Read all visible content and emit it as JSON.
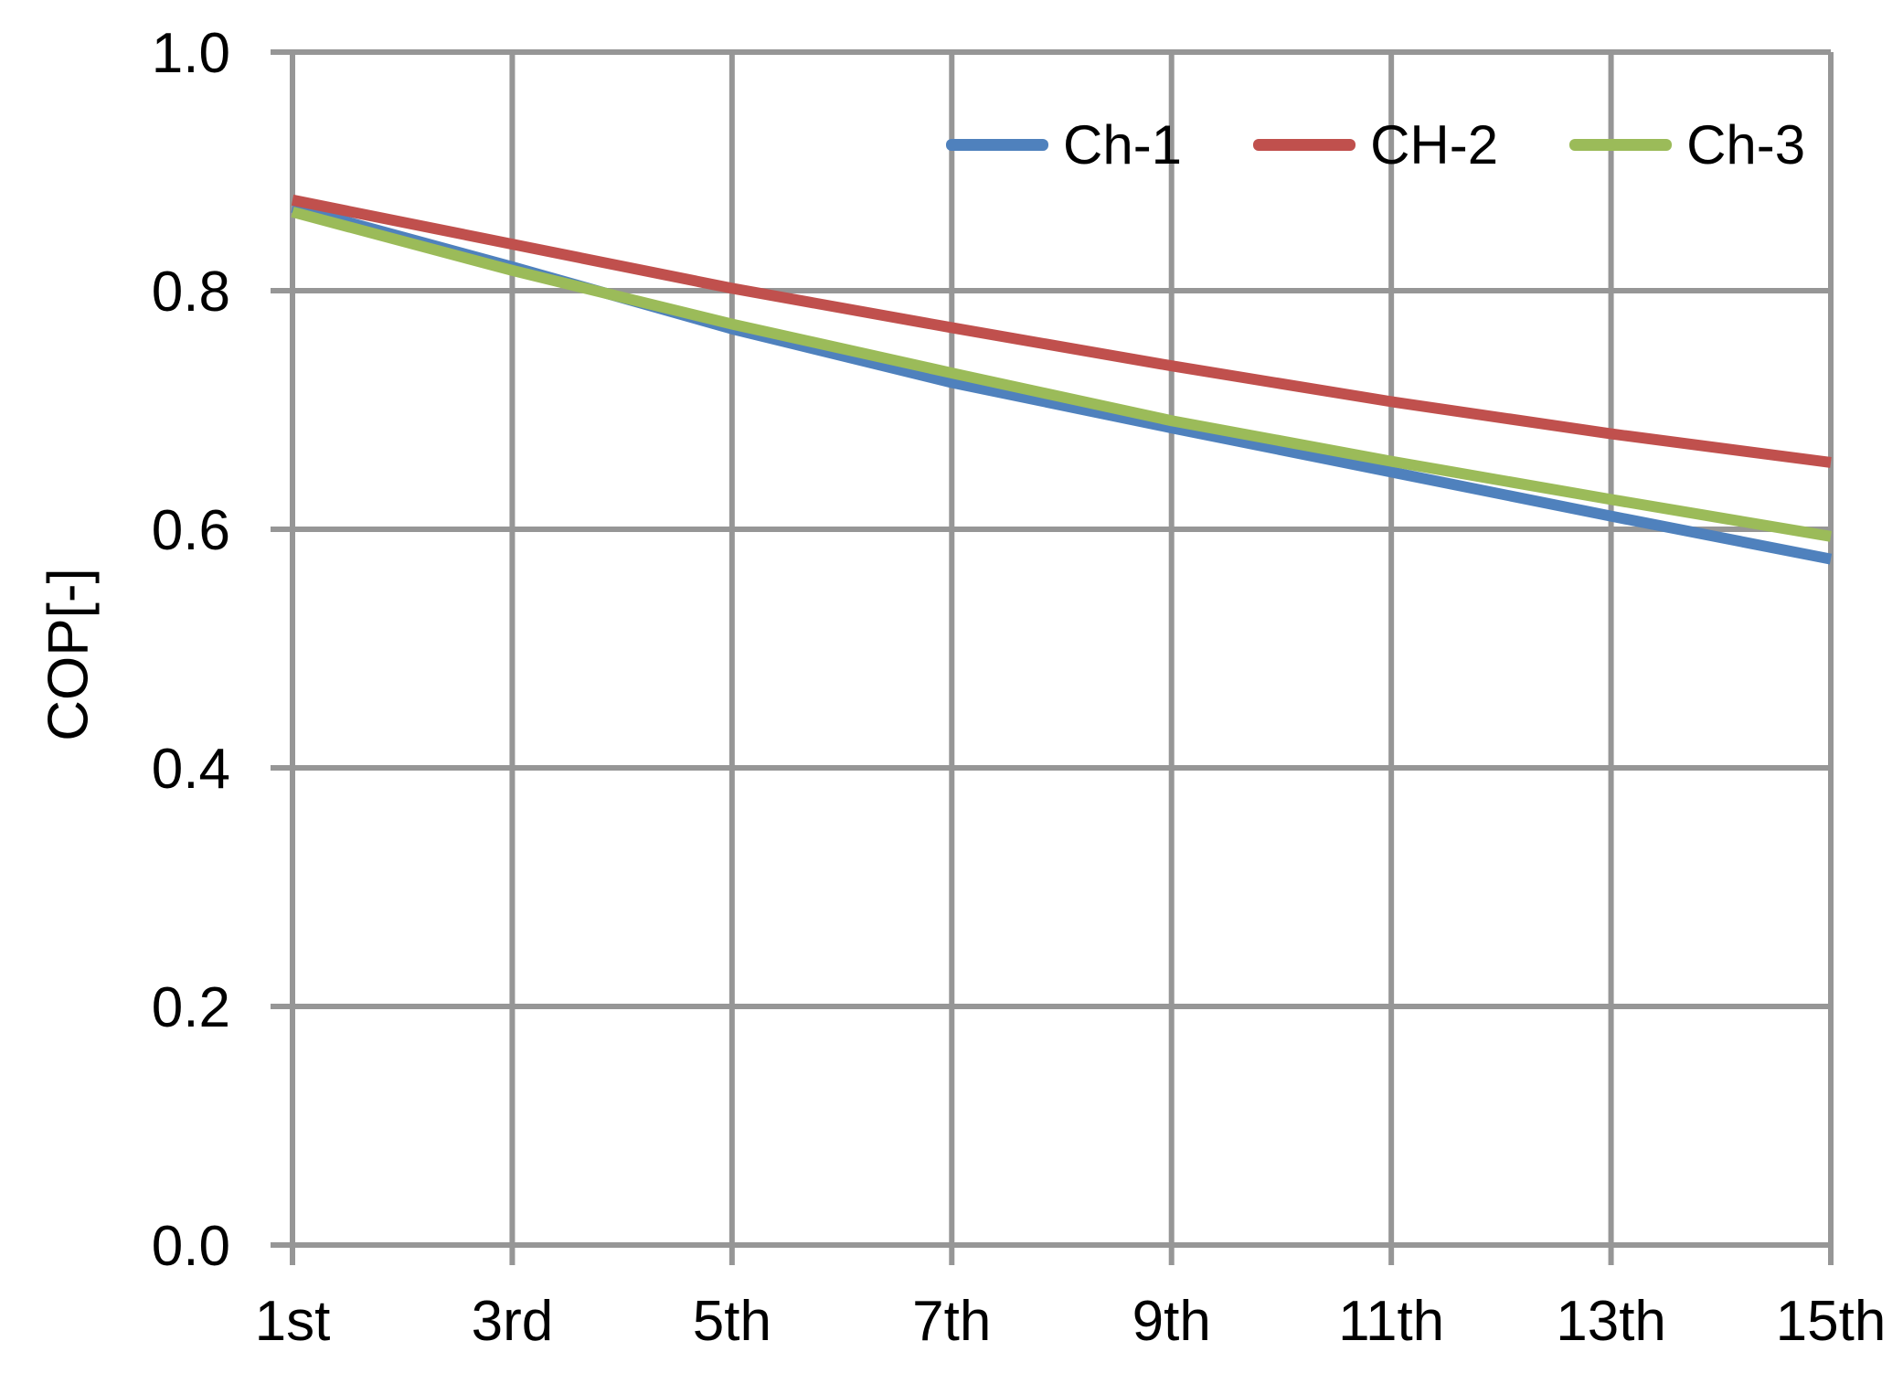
{
  "chart_data": {
    "type": "line",
    "title": "",
    "xlabel": "",
    "ylabel": "COP[-]",
    "categories": [
      "1st",
      "3rd",
      "5th",
      "7th",
      "9th",
      "11th",
      "13th",
      "15th"
    ],
    "series": [
      {
        "name": "Ch-1",
        "color": "#4F81BD",
        "values": [
          0.87,
          0.82,
          0.768,
          0.723,
          0.685,
          0.648,
          0.611,
          0.575
        ]
      },
      {
        "name": "CH-2",
        "color": "#C0504D",
        "values": [
          0.876,
          0.839,
          0.802,
          0.769,
          0.737,
          0.707,
          0.68,
          0.656
        ]
      },
      {
        "name": "Ch-3",
        "color": "#9BBB59",
        "values": [
          0.866,
          0.817,
          0.772,
          0.731,
          0.691,
          0.657,
          0.625,
          0.594
        ]
      }
    ],
    "ylim": [
      0.0,
      1.0
    ],
    "y_tick_step": 0.2,
    "y_tick_labels": [
      "0.0",
      "0.2",
      "0.4",
      "0.6",
      "0.8",
      "1.0"
    ],
    "grid": true,
    "legend_position": "top-inside",
    "gridline_color": "#969696",
    "axis_color": "#969696",
    "text_color": "#000000",
    "background_color": "#FFFFFF"
  }
}
